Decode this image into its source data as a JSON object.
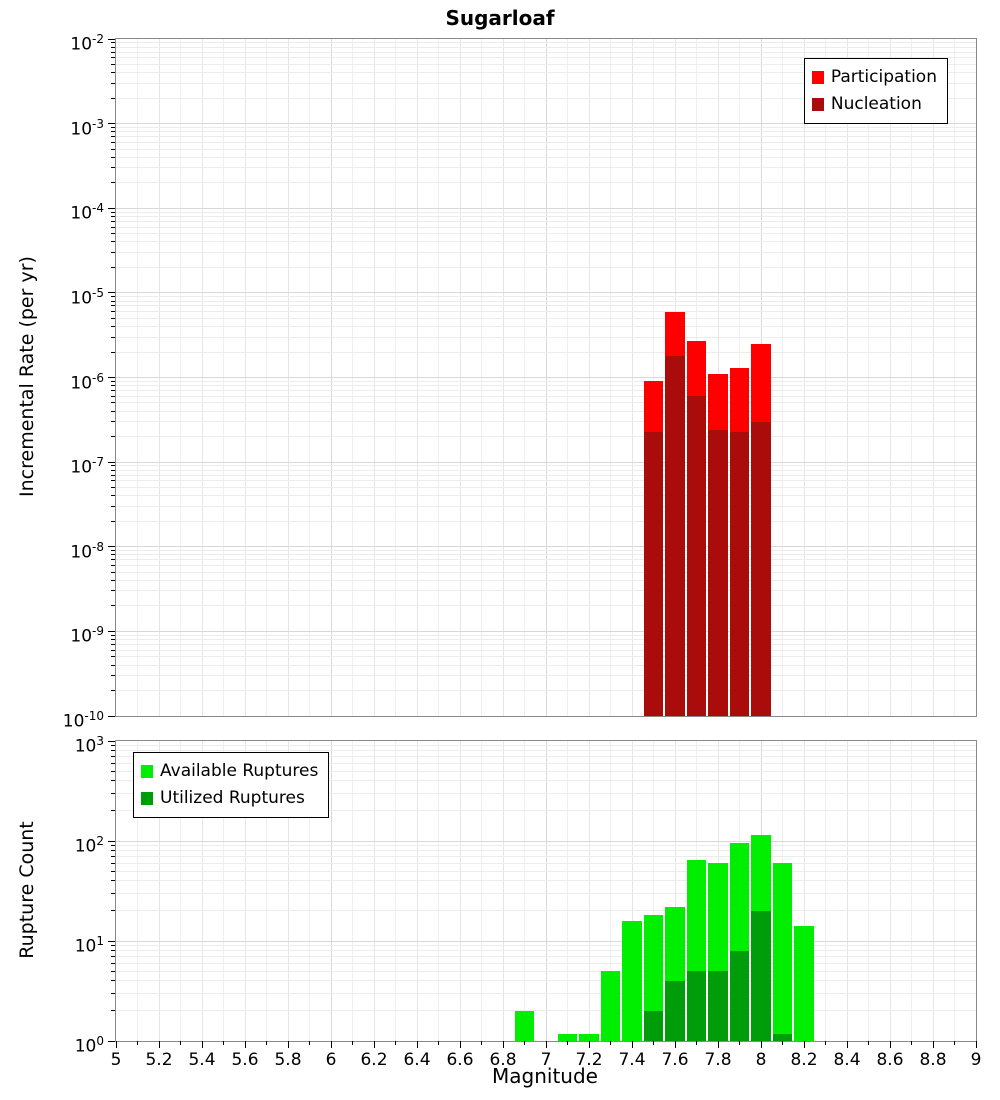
{
  "title": "Sugarloaf",
  "axes": {
    "x_label": "Magnitude",
    "top_y_label": "Incremental Rate (per yr)",
    "bottom_y_label": "Rupture Count"
  },
  "legends": {
    "top": {
      "items": [
        {
          "label": "Participation",
          "color": "#ff0000"
        },
        {
          "label": "Nucleation",
          "color": "#aa0b0b"
        }
      ]
    },
    "bottom": {
      "items": [
        {
          "label": "Available Ruptures",
          "color": "#00ee00"
        },
        {
          "label": "Utilized Ruptures",
          "color": "#009d0b"
        }
      ]
    }
  },
  "chart_data": [
    {
      "type": "bar",
      "panel": "top",
      "title": "Sugarloaf",
      "ylabel": "Incremental Rate (per yr)",
      "yscale": "log",
      "ylim": [
        1e-10,
        0.01
      ],
      "xlim": [
        5,
        9
      ],
      "bin_width": 0.1,
      "grid": true,
      "legend_position": "top-right",
      "ytick_exponents": [
        -2,
        -3,
        -4,
        -5,
        -6,
        -7,
        -8,
        -9,
        -10
      ],
      "series": [
        {
          "name": "Participation",
          "color": "#ff0000",
          "x": [
            7.5,
            7.6,
            7.7,
            7.8,
            7.9,
            8.0
          ],
          "values": [
            9e-07,
            6e-06,
            2.7e-06,
            1.1e-06,
            1.3e-06,
            2.5e-06
          ]
        },
        {
          "name": "Nucleation",
          "color": "#aa0b0b",
          "x": [
            7.5,
            7.6,
            7.7,
            7.8,
            7.9,
            8.0
          ],
          "values": [
            2.3e-07,
            1.8e-06,
            6e-07,
            2.4e-07,
            2.3e-07,
            3e-07
          ]
        }
      ]
    },
    {
      "type": "bar",
      "panel": "bottom",
      "ylabel": "Rupture Count",
      "xlabel": "Magnitude",
      "yscale": "log",
      "ylim": [
        1,
        1000
      ],
      "xlim": [
        5,
        9
      ],
      "bin_width": 0.1,
      "grid": true,
      "legend_position": "top-left",
      "ytick_exponents": [
        3,
        2,
        1,
        0
      ],
      "xtick_step": 0.2,
      "xtick_labels": [
        "5",
        "5.2",
        "5.4",
        "5.6",
        "5.8",
        "6",
        "6.2",
        "6.4",
        "6.6",
        "6.8",
        "7",
        "7.2",
        "7.4",
        "7.6",
        "7.8",
        "8",
        "8.2",
        "8.4",
        "8.6",
        "8.8",
        "9"
      ],
      "series": [
        {
          "name": "Available Ruptures",
          "color": "#00ee00",
          "x": [
            6.9,
            7.1,
            7.2,
            7.3,
            7.4,
            7.5,
            7.6,
            7.7,
            7.8,
            7.9,
            8.0,
            8.1,
            8.2
          ],
          "values": [
            2,
            1,
            1,
            5,
            16,
            18,
            22,
            65,
            60,
            95,
            115,
            60,
            14
          ]
        },
        {
          "name": "Utilized Ruptures",
          "color": "#009d0b",
          "x": [
            7.5,
            7.6,
            7.7,
            7.8,
            7.9,
            8.0,
            8.1
          ],
          "values": [
            2,
            4,
            5,
            5,
            8,
            20,
            1
          ]
        }
      ]
    }
  ]
}
